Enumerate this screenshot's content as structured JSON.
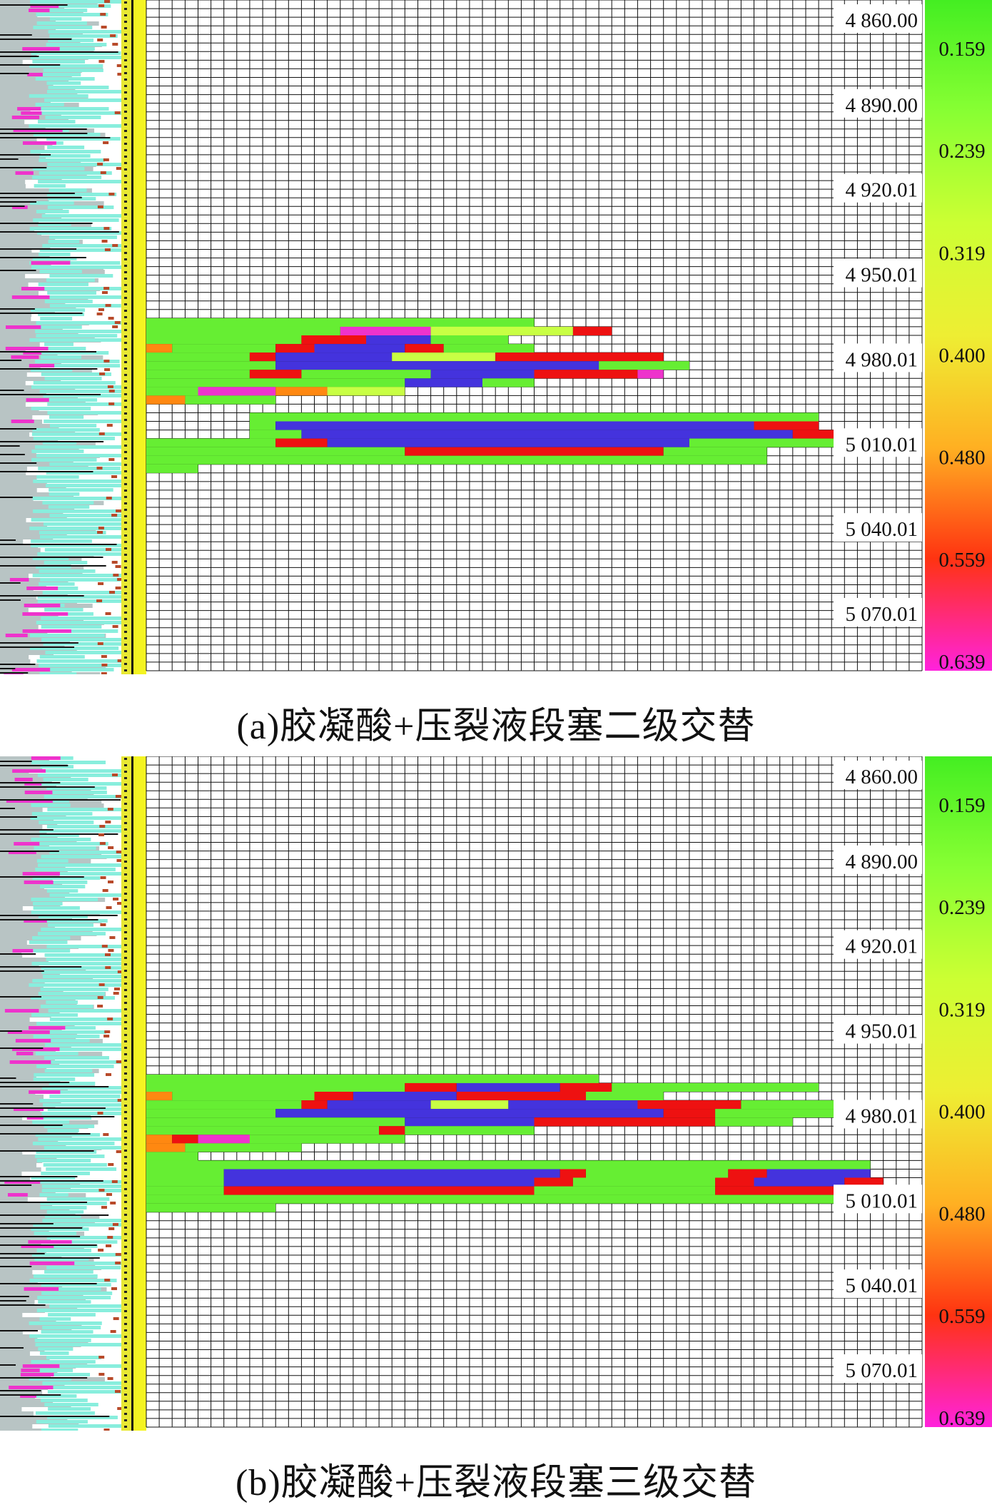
{
  "figure": {
    "panels": [
      {
        "id": "a",
        "caption": "(a)胶凝酸+压裂液段塞二级交替"
      },
      {
        "id": "b",
        "caption": "(b)胶凝酸+压裂液段塞三级交替"
      }
    ],
    "depth_labels": [
      "4 860.00",
      "4 890.00",
      "4 920.01",
      "4 950.01",
      "4 980.01",
      "5 010.01",
      "5 040.01",
      "5 070.01"
    ],
    "colorbar_labels": [
      "0.159",
      "0.239",
      "0.319",
      "0.400",
      "0.480",
      "0.559",
      "0.639"
    ],
    "colorbar_colors": [
      "#44ee22",
      "#88ff33",
      "#ccff33",
      "#eeee33",
      "#ffb022",
      "#ff3311",
      "#ff22dd"
    ],
    "fracture_colors": {
      "green": "#66ee33",
      "yellowgreen": "#c8ff44",
      "red": "#ee1111",
      "blue": "#4433dd",
      "orange": "#ff8811",
      "magenta": "#ee33cc"
    }
  },
  "chart_data": [
    {
      "type": "heatmap",
      "panel": "(a)",
      "title": "",
      "ylabel_ticks": [
        "4 860.00",
        "4 890.00",
        "4 920.01",
        "4 950.01",
        "4 980.01",
        "5 010.01",
        "5 040.01",
        "5 070.01"
      ],
      "colorbar": {
        "ticks": [
          0.159,
          0.239,
          0.319,
          0.4,
          0.48,
          0.559,
          0.639
        ],
        "range": [
          0.159,
          0.639
        ]
      },
      "depth_range": [
        4860.0,
        5070.01
      ],
      "grid_rows": 78,
      "grid_cols": 60,
      "bands": [
        {
          "row": 37,
          "start": 0,
          "end": 30,
          "c": "green"
        },
        {
          "row": 38,
          "start": 0,
          "end": 15,
          "c": "green"
        },
        {
          "row": 38,
          "start": 15,
          "end": 22,
          "c": "magenta"
        },
        {
          "row": 38,
          "start": 22,
          "end": 33,
          "c": "yellowgreen"
        },
        {
          "row": 38,
          "start": 33,
          "end": 36,
          "c": "red"
        },
        {
          "row": 39,
          "start": 0,
          "end": 12,
          "c": "green"
        },
        {
          "row": 39,
          "start": 12,
          "end": 17,
          "c": "red"
        },
        {
          "row": 39,
          "start": 17,
          "end": 22,
          "c": "blue"
        },
        {
          "row": 39,
          "start": 22,
          "end": 28,
          "c": "green"
        },
        {
          "row": 40,
          "start": 0,
          "end": 2,
          "c": "orange"
        },
        {
          "row": 40,
          "start": 2,
          "end": 10,
          "c": "green"
        },
        {
          "row": 40,
          "start": 10,
          "end": 13,
          "c": "red"
        },
        {
          "row": 40,
          "start": 13,
          "end": 20,
          "c": "blue"
        },
        {
          "row": 40,
          "start": 20,
          "end": 23,
          "c": "red"
        },
        {
          "row": 40,
          "start": 23,
          "end": 30,
          "c": "green"
        },
        {
          "row": 41,
          "start": 0,
          "end": 8,
          "c": "green"
        },
        {
          "row": 41,
          "start": 8,
          "end": 10,
          "c": "red"
        },
        {
          "row": 41,
          "start": 10,
          "end": 19,
          "c": "blue"
        },
        {
          "row": 41,
          "start": 19,
          "end": 27,
          "c": "yellowgreen"
        },
        {
          "row": 41,
          "start": 27,
          "end": 40,
          "c": "red"
        },
        {
          "row": 42,
          "start": 0,
          "end": 10,
          "c": "green"
        },
        {
          "row": 42,
          "start": 10,
          "end": 17,
          "c": "blue"
        },
        {
          "row": 42,
          "start": 17,
          "end": 35,
          "c": "blue"
        },
        {
          "row": 42,
          "start": 35,
          "end": 42,
          "c": "green"
        },
        {
          "row": 43,
          "start": 0,
          "end": 8,
          "c": "green"
        },
        {
          "row": 43,
          "start": 8,
          "end": 12,
          "c": "red"
        },
        {
          "row": 43,
          "start": 12,
          "end": 22,
          "c": "green"
        },
        {
          "row": 43,
          "start": 22,
          "end": 30,
          "c": "blue"
        },
        {
          "row": 43,
          "start": 30,
          "end": 38,
          "c": "red"
        },
        {
          "row": 43,
          "start": 38,
          "end": 40,
          "c": "magenta"
        },
        {
          "row": 44,
          "start": 0,
          "end": 20,
          "c": "green"
        },
        {
          "row": 44,
          "start": 20,
          "end": 26,
          "c": "blue"
        },
        {
          "row": 44,
          "start": 26,
          "end": 30,
          "c": "green"
        },
        {
          "row": 45,
          "start": 0,
          "end": 4,
          "c": "green"
        },
        {
          "row": 45,
          "start": 4,
          "end": 10,
          "c": "magenta"
        },
        {
          "row": 45,
          "start": 10,
          "end": 14,
          "c": "orange"
        },
        {
          "row": 45,
          "start": 14,
          "end": 20,
          "c": "yellowgreen"
        },
        {
          "row": 46,
          "start": 0,
          "end": 3,
          "c": "orange"
        },
        {
          "row": 46,
          "start": 3,
          "end": 10,
          "c": "green"
        },
        {
          "row": 48,
          "start": 8,
          "end": 52,
          "c": "green"
        },
        {
          "row": 49,
          "start": 8,
          "end": 10,
          "c": "green"
        },
        {
          "row": 49,
          "start": 10,
          "end": 47,
          "c": "blue"
        },
        {
          "row": 49,
          "start": 47,
          "end": 52,
          "c": "red"
        },
        {
          "row": 50,
          "start": 8,
          "end": 12,
          "c": "green"
        },
        {
          "row": 50,
          "start": 12,
          "end": 50,
          "c": "blue"
        },
        {
          "row": 50,
          "start": 50,
          "end": 54,
          "c": "red"
        },
        {
          "row": 51,
          "start": 0,
          "end": 10,
          "c": "green"
        },
        {
          "row": 51,
          "start": 10,
          "end": 14,
          "c": "red"
        },
        {
          "row": 51,
          "start": 14,
          "end": 42,
          "c": "blue"
        },
        {
          "row": 51,
          "start": 42,
          "end": 55,
          "c": "green"
        },
        {
          "row": 51,
          "start": 55,
          "end": 56,
          "c": "orange"
        },
        {
          "row": 52,
          "start": 0,
          "end": 20,
          "c": "green"
        },
        {
          "row": 52,
          "start": 20,
          "end": 40,
          "c": "red"
        },
        {
          "row": 52,
          "start": 40,
          "end": 48,
          "c": "green"
        },
        {
          "row": 53,
          "start": 0,
          "end": 48,
          "c": "green"
        },
        {
          "row": 54,
          "start": 0,
          "end": 4,
          "c": "green"
        }
      ]
    },
    {
      "type": "heatmap",
      "panel": "(b)",
      "title": "",
      "ylabel_ticks": [
        "4 860.00",
        "4 890.00",
        "4 920.01",
        "4 950.01",
        "4 980.01",
        "5 010.01",
        "5 040.01",
        "5 070.01"
      ],
      "colorbar": {
        "ticks": [
          0.159,
          0.239,
          0.319,
          0.4,
          0.48,
          0.559,
          0.639
        ],
        "range": [
          0.159,
          0.639
        ]
      },
      "depth_range": [
        4860.0,
        5070.01
      ],
      "grid_rows": 78,
      "grid_cols": 60,
      "bands": [
        {
          "row": 37,
          "start": 0,
          "end": 35,
          "c": "green"
        },
        {
          "row": 38,
          "start": 0,
          "end": 20,
          "c": "green"
        },
        {
          "row": 38,
          "start": 20,
          "end": 24,
          "c": "red"
        },
        {
          "row": 38,
          "start": 24,
          "end": 32,
          "c": "blue"
        },
        {
          "row": 38,
          "start": 32,
          "end": 36,
          "c": "red"
        },
        {
          "row": 38,
          "start": 36,
          "end": 52,
          "c": "green"
        },
        {
          "row": 39,
          "start": 0,
          "end": 2,
          "c": "orange"
        },
        {
          "row": 39,
          "start": 2,
          "end": 13,
          "c": "green"
        },
        {
          "row": 39,
          "start": 13,
          "end": 16,
          "c": "red"
        },
        {
          "row": 39,
          "start": 16,
          "end": 24,
          "c": "blue"
        },
        {
          "row": 39,
          "start": 24,
          "end": 34,
          "c": "red"
        },
        {
          "row": 39,
          "start": 34,
          "end": 40,
          "c": "green"
        },
        {
          "row": 40,
          "start": 0,
          "end": 12,
          "c": "green"
        },
        {
          "row": 40,
          "start": 12,
          "end": 14,
          "c": "red"
        },
        {
          "row": 40,
          "start": 14,
          "end": 22,
          "c": "blue"
        },
        {
          "row": 40,
          "start": 22,
          "end": 28,
          "c": "yellowgreen"
        },
        {
          "row": 40,
          "start": 28,
          "end": 38,
          "c": "blue"
        },
        {
          "row": 40,
          "start": 38,
          "end": 46,
          "c": "red"
        },
        {
          "row": 40,
          "start": 46,
          "end": 54,
          "c": "green"
        },
        {
          "row": 41,
          "start": 0,
          "end": 10,
          "c": "green"
        },
        {
          "row": 41,
          "start": 10,
          "end": 21,
          "c": "blue"
        },
        {
          "row": 41,
          "start": 21,
          "end": 40,
          "c": "blue"
        },
        {
          "row": 41,
          "start": 40,
          "end": 44,
          "c": "red"
        },
        {
          "row": 41,
          "start": 44,
          "end": 56,
          "c": "green"
        },
        {
          "row": 41,
          "start": 56,
          "end": 58,
          "c": "orange"
        },
        {
          "row": 42,
          "start": 0,
          "end": 20,
          "c": "green"
        },
        {
          "row": 42,
          "start": 20,
          "end": 30,
          "c": "blue"
        },
        {
          "row": 42,
          "start": 30,
          "end": 44,
          "c": "red"
        },
        {
          "row": 42,
          "start": 44,
          "end": 50,
          "c": "green"
        },
        {
          "row": 43,
          "start": 0,
          "end": 18,
          "c": "green"
        },
        {
          "row": 43,
          "start": 18,
          "end": 20,
          "c": "red"
        },
        {
          "row": 43,
          "start": 20,
          "end": 30,
          "c": "green"
        },
        {
          "row": 44,
          "start": 0,
          "end": 2,
          "c": "orange"
        },
        {
          "row": 44,
          "start": 2,
          "end": 4,
          "c": "red"
        },
        {
          "row": 44,
          "start": 4,
          "end": 8,
          "c": "magenta"
        },
        {
          "row": 44,
          "start": 8,
          "end": 20,
          "c": "green"
        },
        {
          "row": 45,
          "start": 0,
          "end": 3,
          "c": "orange"
        },
        {
          "row": 45,
          "start": 3,
          "end": 12,
          "c": "green"
        },
        {
          "row": 46,
          "start": 0,
          "end": 4,
          "c": "green"
        },
        {
          "row": 47,
          "start": 0,
          "end": 56,
          "c": "green"
        },
        {
          "row": 48,
          "start": 0,
          "end": 6,
          "c": "green"
        },
        {
          "row": 48,
          "start": 6,
          "end": 32,
          "c": "blue"
        },
        {
          "row": 48,
          "start": 32,
          "end": 34,
          "c": "red"
        },
        {
          "row": 48,
          "start": 34,
          "end": 45,
          "c": "green"
        },
        {
          "row": 48,
          "start": 45,
          "end": 48,
          "c": "red"
        },
        {
          "row": 48,
          "start": 48,
          "end": 56,
          "c": "blue"
        },
        {
          "row": 49,
          "start": 0,
          "end": 6,
          "c": "green"
        },
        {
          "row": 49,
          "start": 6,
          "end": 30,
          "c": "blue"
        },
        {
          "row": 49,
          "start": 30,
          "end": 33,
          "c": "red"
        },
        {
          "row": 49,
          "start": 33,
          "end": 44,
          "c": "green"
        },
        {
          "row": 49,
          "start": 44,
          "end": 47,
          "c": "red"
        },
        {
          "row": 49,
          "start": 47,
          "end": 54,
          "c": "blue"
        },
        {
          "row": 49,
          "start": 54,
          "end": 57,
          "c": "red"
        },
        {
          "row": 50,
          "start": 0,
          "end": 6,
          "c": "green"
        },
        {
          "row": 50,
          "start": 6,
          "end": 30,
          "c": "red"
        },
        {
          "row": 50,
          "start": 30,
          "end": 44,
          "c": "green"
        },
        {
          "row": 50,
          "start": 44,
          "end": 56,
          "c": "red"
        },
        {
          "row": 51,
          "start": 0,
          "end": 56,
          "c": "green"
        },
        {
          "row": 52,
          "start": 0,
          "end": 10,
          "c": "green"
        }
      ]
    }
  ]
}
